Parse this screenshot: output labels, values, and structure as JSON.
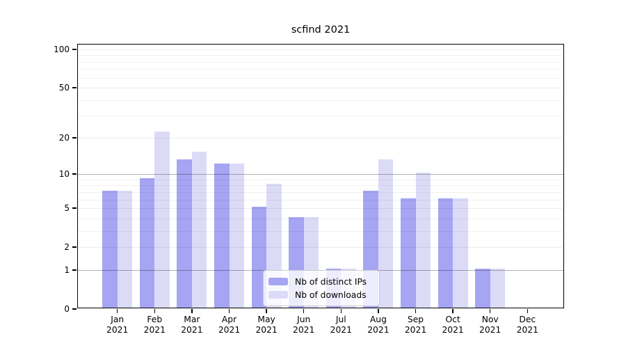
{
  "chart_data": {
    "type": "bar",
    "title": "scfind 2021",
    "categories": [
      "Jan",
      "Feb",
      "Mar",
      "Apr",
      "May",
      "Jun",
      "Jul",
      "Aug",
      "Sep",
      "Oct",
      "Nov",
      "Dec"
    ],
    "year_label": "2021",
    "series": [
      {
        "name": "Nb of distinct IPs",
        "color": "#a5a5f3",
        "values": [
          7,
          9,
          13,
          12,
          5,
          4,
          1,
          7,
          6,
          6,
          1,
          0
        ]
      },
      {
        "name": "Nb of downloads",
        "color": "#dbdbf8",
        "values": [
          7,
          22,
          15,
          12,
          8,
          4,
          1,
          13,
          10,
          6,
          1,
          0
        ]
      }
    ],
    "xlabel": "",
    "ylabel": "",
    "ylim": [
      0,
      100
    ],
    "y_scale": "log10(1+x)",
    "y_ticks": [
      100,
      50,
      20,
      10,
      5,
      2,
      1,
      0
    ],
    "gridlines": {
      "strong": [
        10,
        1
      ],
      "major": [
        100,
        50,
        20,
        5,
        2
      ],
      "minor": [
        3,
        4,
        6,
        7,
        8,
        9,
        30,
        40,
        60,
        70,
        80,
        90
      ]
    },
    "grid": "on",
    "legend_position": "bottom-center"
  }
}
